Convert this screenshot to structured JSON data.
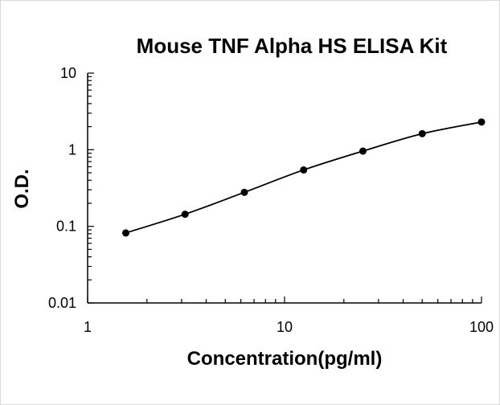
{
  "chart_data": {
    "type": "line",
    "title": "Mouse TNF Alpha HS ELISA Kit",
    "xlabel": "Concentration(pg/ml)",
    "ylabel": "O.D.",
    "x_scale": "log",
    "y_scale": "log",
    "xlim": [
      1,
      100
    ],
    "ylim": [
      0.01,
      10
    ],
    "x_ticks": [
      {
        "value": 1,
        "label": "1"
      },
      {
        "value": 10,
        "label": "10"
      },
      {
        "value": 100,
        "label": "100"
      }
    ],
    "y_ticks": [
      {
        "value": 0.01,
        "label": "0.01"
      },
      {
        "value": 0.1,
        "label": "0.1"
      },
      {
        "value": 1,
        "label": "1"
      },
      {
        "value": 10,
        "label": "10"
      }
    ],
    "grid": false,
    "legend": false,
    "colors": {
      "line": "#000000",
      "marker": "#000000",
      "axis": "#000000"
    },
    "series": [
      {
        "x": [
          1.5625,
          3.125,
          6.25,
          12.5,
          25,
          50,
          100
        ],
        "y": [
          0.082,
          0.144,
          0.278,
          0.545,
          0.96,
          1.62,
          2.3
        ]
      }
    ]
  }
}
